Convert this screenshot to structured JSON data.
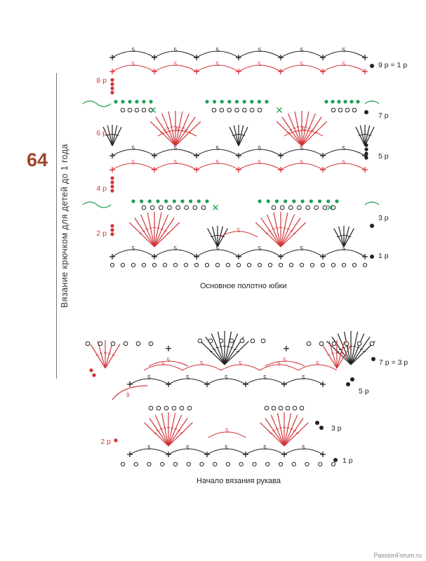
{
  "page_number": "64",
  "side_caption": "Вязание крючком для детей до 1 года",
  "diagrams": [
    {
      "caption": "Основное полотно юбки",
      "arch_count": "5",
      "row_labels_left": [
        "8 р",
        "6 р",
        "4 р",
        "2 р"
      ],
      "row_labels_right": [
        "9 р = 1 р",
        "7 р",
        "5 р",
        "3 р",
        "1 р"
      ]
    },
    {
      "caption": "Начало вязания рукава",
      "arch_count": "5",
      "big_arch_count": "9",
      "row_labels_left": [
        "2 р"
      ],
      "row_labels_right": [
        "7 р = 3 р",
        "5 р",
        "3 р",
        "1 р"
      ]
    }
  ],
  "colors": {
    "black": "#222222",
    "red": "#d3353a",
    "green": "#1fa055",
    "accent": "#a0462a"
  },
  "watermark": "PassionForum.ru"
}
